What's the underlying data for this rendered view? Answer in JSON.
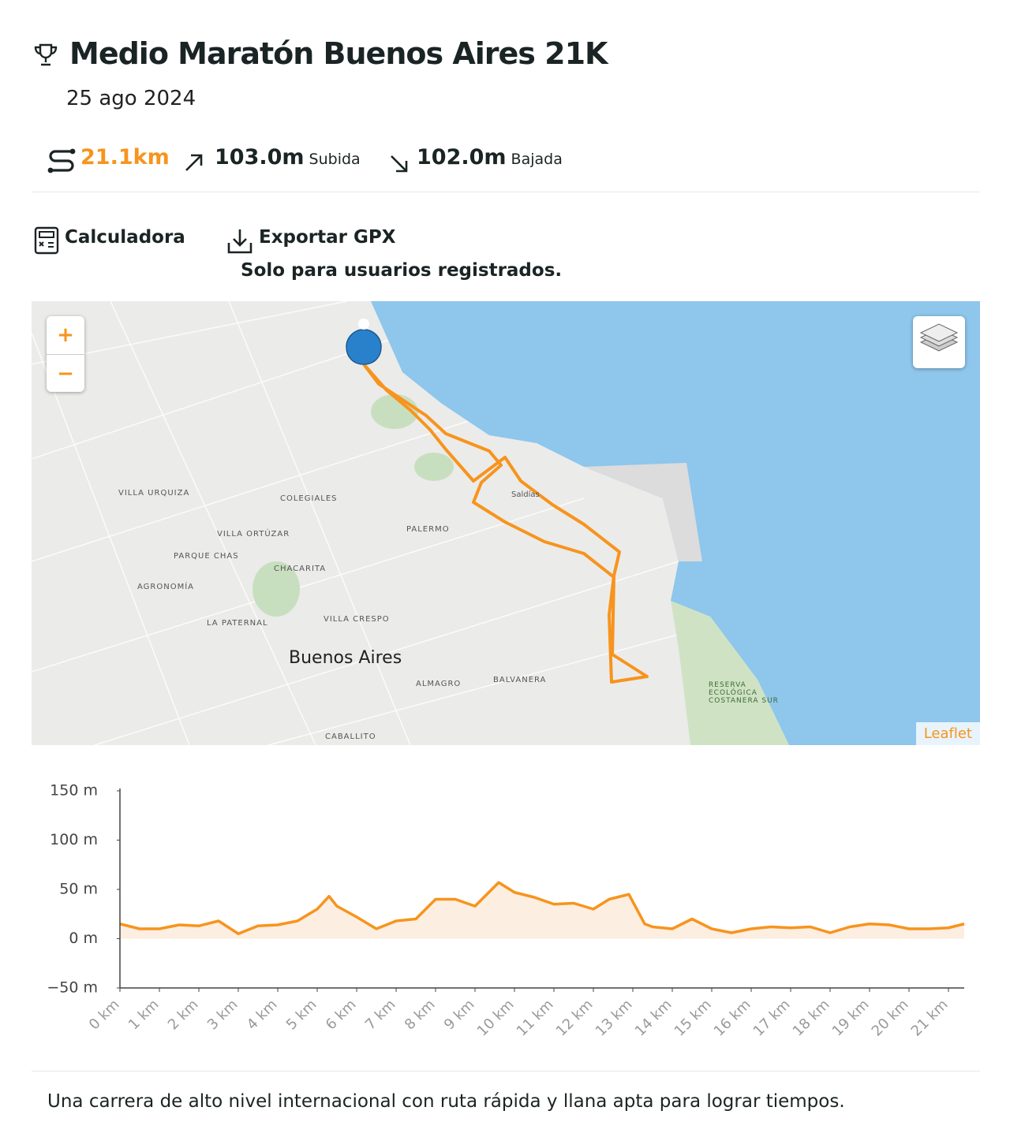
{
  "header": {
    "title": "Medio Maratón Buenos Aires 21K",
    "date": "25 ago 2024"
  },
  "stats": [
    {
      "value": "21.1km"
    },
    {
      "value": "103.0m",
      "label": "Subida"
    },
    {
      "value": "102.0m",
      "label": "Bajada"
    }
  ],
  "actions": {
    "calculator": "Calculadora",
    "export": "Exportar GPX",
    "export_note": "Solo para usuarios registrados."
  },
  "map": {
    "labels": [
      "Buenos Aires",
      "Palermo",
      "Colegiales",
      "Chacarita",
      "Villa Crespo",
      "Almagro",
      "Balvanera",
      "Caballito",
      "Agronomía",
      "La Paternal",
      "Villa Urquiza",
      "Villa Ortúzar",
      "Parque Chas",
      "Saldías",
      "Reserva Ecológica Costanera Sur"
    ],
    "zoom_in": "+",
    "zoom_out": "−",
    "attribution": "Leaflet"
  },
  "chart_data": {
    "type": "line",
    "x": [
      0,
      0.5,
      1,
      1.5,
      2,
      2.5,
      3,
      3.5,
      4,
      4.5,
      5,
      5.3,
      5.5,
      6,
      6.5,
      7,
      7.5,
      8,
      8.5,
      9,
      9.6,
      10,
      10.5,
      11,
      11.5,
      12,
      12.4,
      12.9,
      13.3,
      13.5,
      14,
      14.5,
      15,
      15.5,
      16,
      16.5,
      17,
      17.5,
      18,
      18.5,
      19,
      19.5,
      20,
      20.5,
      21,
      21.4
    ],
    "values": [
      15,
      10,
      10,
      14,
      13,
      18,
      5,
      13,
      14,
      18,
      30,
      43,
      33,
      22,
      10,
      18,
      20,
      40,
      40,
      33,
      57,
      47,
      42,
      35,
      36,
      30,
      40,
      45,
      15,
      12,
      10,
      20,
      10,
      6,
      10,
      12,
      11,
      12,
      6,
      12,
      15,
      14,
      10,
      10,
      11,
      15
    ],
    "color": "#f7941d",
    "fill": "#fdeee2",
    "xlim": [
      0,
      21.4
    ],
    "xticks": [
      {
        "value": 0,
        "label": "0 km"
      },
      {
        "value": 1,
        "label": "1 km"
      },
      {
        "value": 2,
        "label": "2 km"
      },
      {
        "value": 3,
        "label": "3 km"
      },
      {
        "value": 4,
        "label": "4 km"
      },
      {
        "value": 5,
        "label": "5 km"
      },
      {
        "value": 6,
        "label": "6 km"
      },
      {
        "value": 7,
        "label": "7 km"
      },
      {
        "value": 8,
        "label": "8 km"
      },
      {
        "value": 9,
        "label": "9 km"
      },
      {
        "value": 10,
        "label": "10 km"
      },
      {
        "value": 11,
        "label": "11 km"
      },
      {
        "value": 12,
        "label": "12 km"
      },
      {
        "value": 13,
        "label": "13 km"
      },
      {
        "value": 14,
        "label": "14 km"
      },
      {
        "value": 15,
        "label": "15 km"
      },
      {
        "value": 16,
        "label": "16 km"
      },
      {
        "value": 17,
        "label": "17 km"
      },
      {
        "value": 18,
        "label": "18 km"
      },
      {
        "value": 19,
        "label": "19 km"
      },
      {
        "value": 20,
        "label": "20 km"
      },
      {
        "value": 21,
        "label": "21 km"
      }
    ],
    "ylim": [
      -50,
      150
    ],
    "yticks": [
      {
        "value": -50,
        "label": "−50 m"
      },
      {
        "value": 0,
        "label": "0 m"
      },
      {
        "value": 50,
        "label": "50 m"
      },
      {
        "value": 100,
        "label": "100 m"
      },
      {
        "value": 150,
        "label": "150 m"
      }
    ]
  },
  "description": "Una carrera de alto nivel internacional con ruta rápida y llana apta para lograr tiempos."
}
